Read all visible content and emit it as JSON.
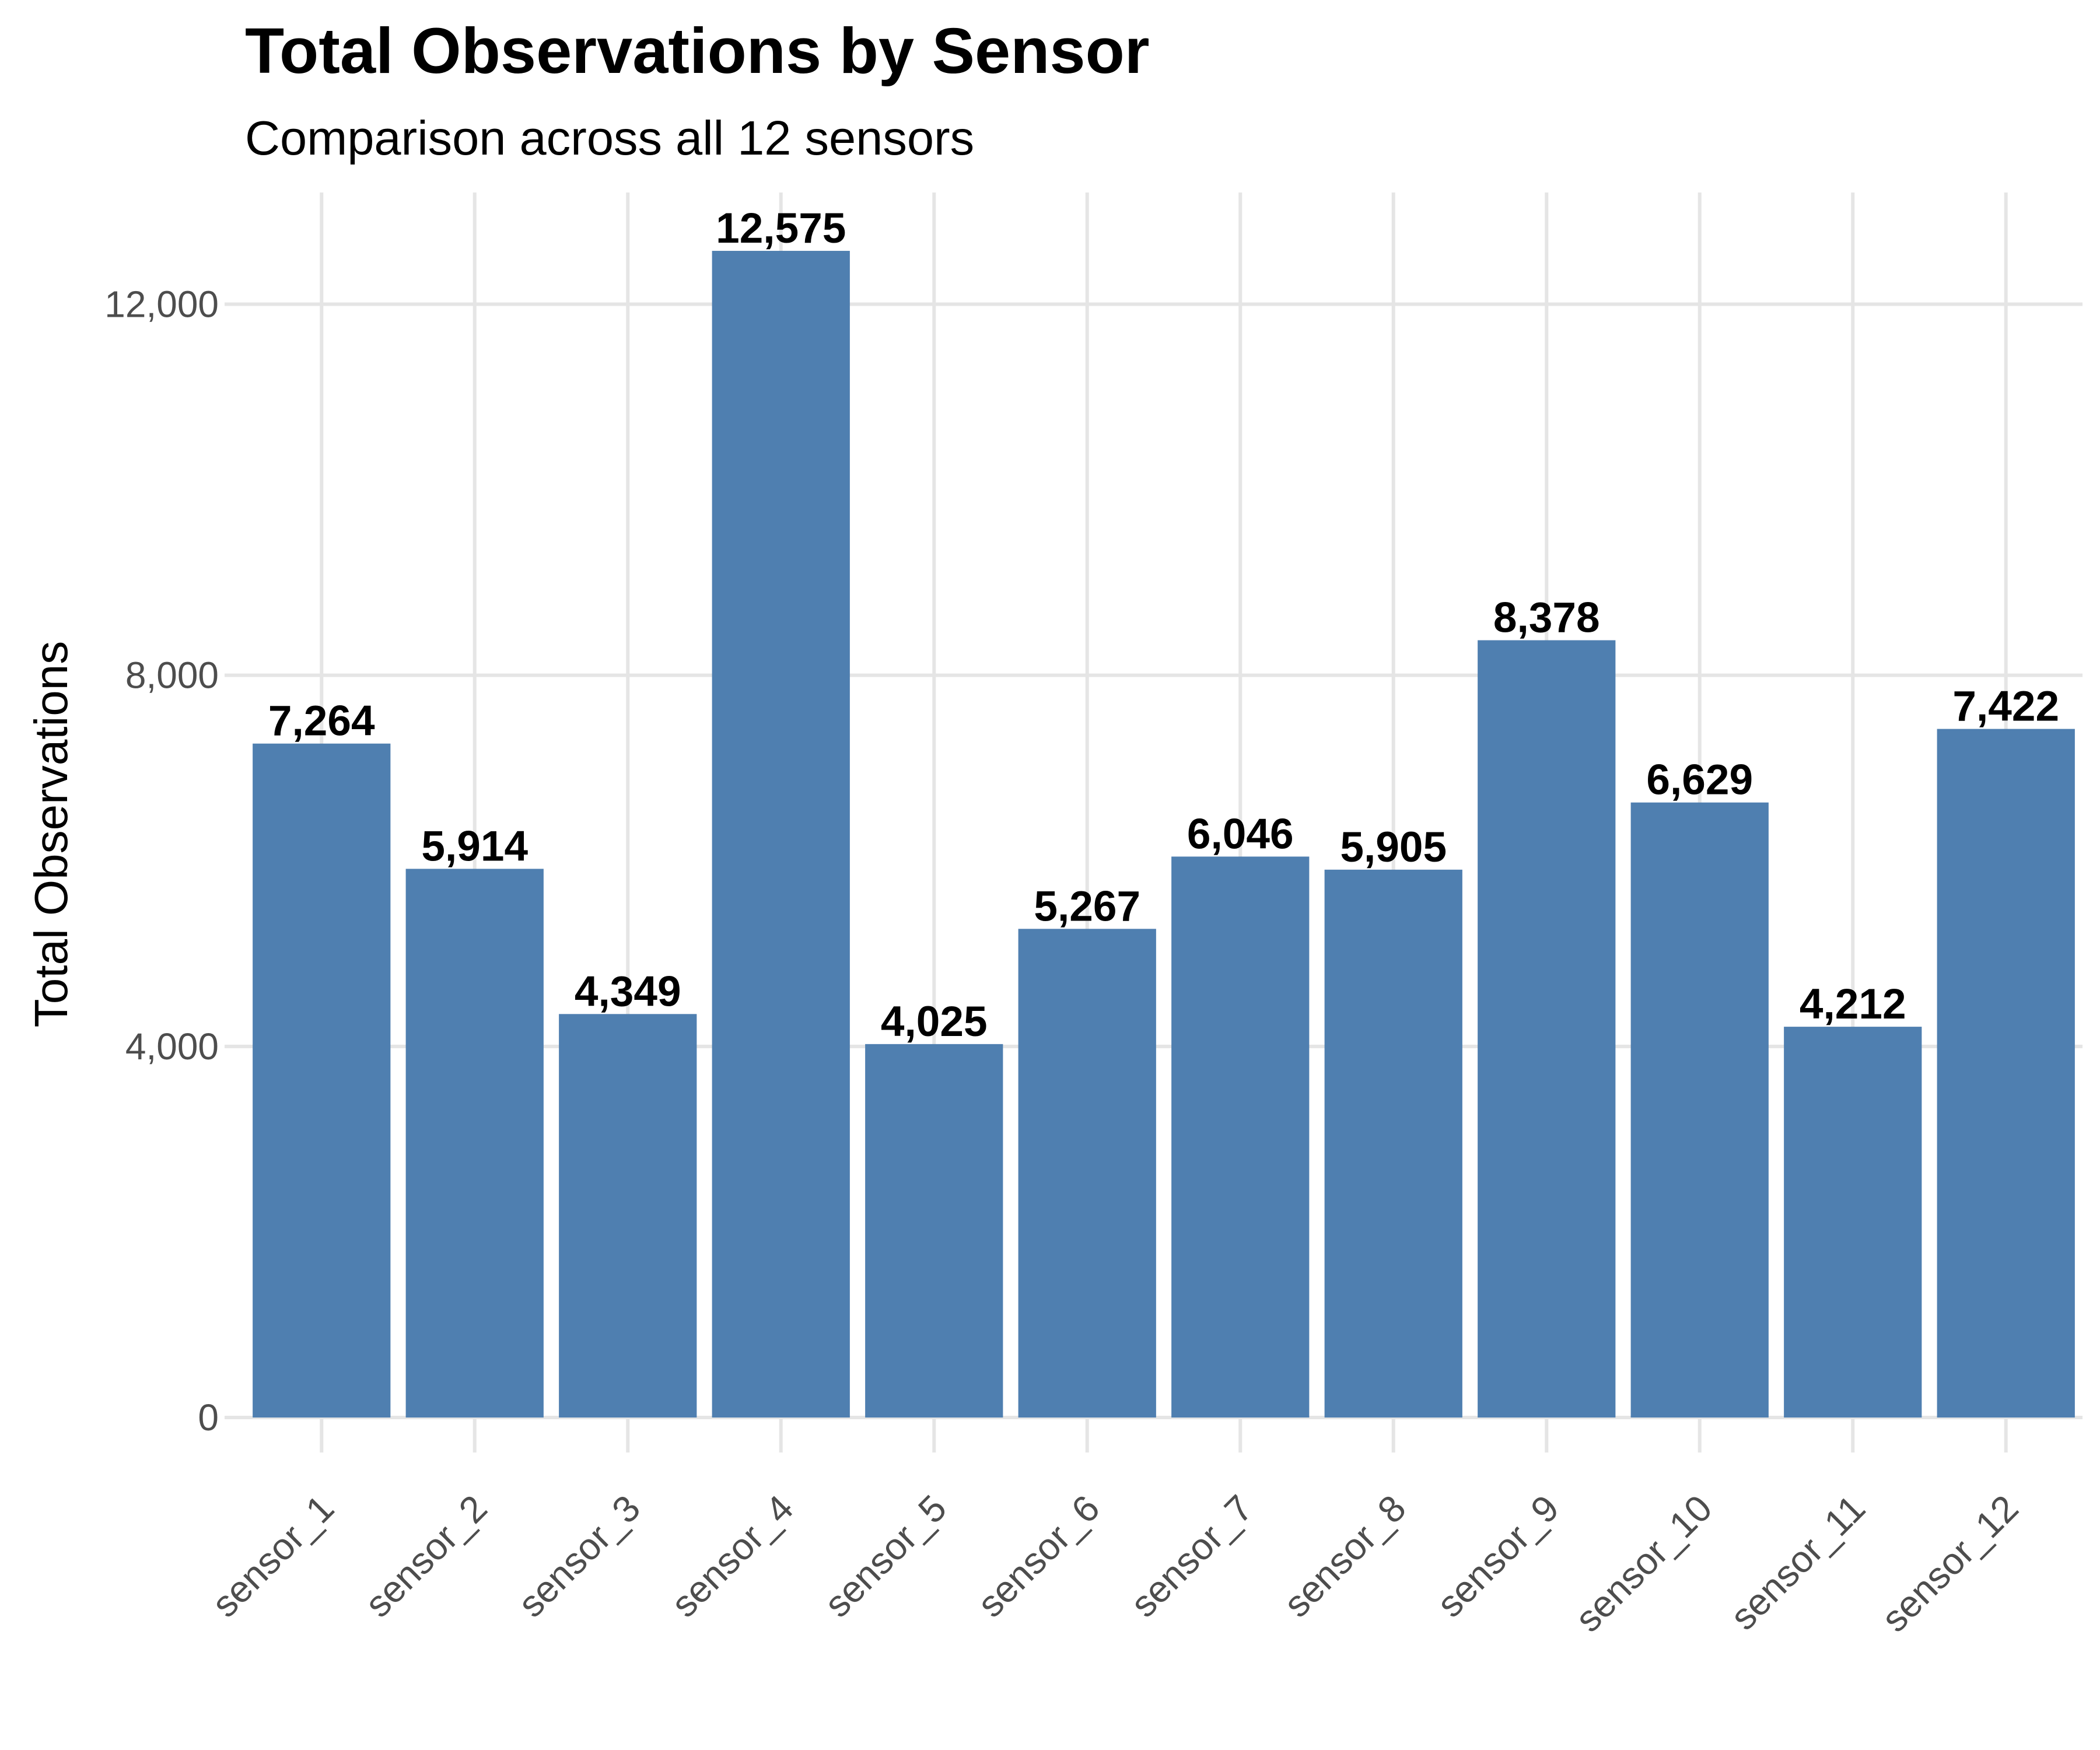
{
  "chart_data": {
    "type": "bar",
    "title": "Total Observations by Sensor",
    "subtitle": "Comparison across all 12 sensors",
    "xlabel": "",
    "ylabel": "Total Observations",
    "categories": [
      "sensor_1",
      "sensor_2",
      "sensor_3",
      "sensor_4",
      "sensor_5",
      "sensor_6",
      "sensor_7",
      "sensor_8",
      "sensor_9",
      "sensor_10",
      "sensor_11",
      "sensor_12"
    ],
    "values": [
      7264,
      5914,
      4349,
      12575,
      4025,
      5267,
      6046,
      5905,
      8378,
      6629,
      4212,
      7422
    ],
    "value_labels": [
      "7,264",
      "5,914",
      "4,349",
      "12,575",
      "4,025",
      "5,267",
      "6,046",
      "5,905",
      "8,378",
      "6,629",
      "4,212",
      "7,422"
    ],
    "yticks": [
      0,
      4000,
      8000,
      12000
    ],
    "ytick_labels": [
      "0",
      "4,000",
      "8,000",
      "12,000"
    ],
    "ylim": [
      0,
      13204
    ],
    "bar_color": "#4f7fb0",
    "grid": true,
    "legend": false
  }
}
